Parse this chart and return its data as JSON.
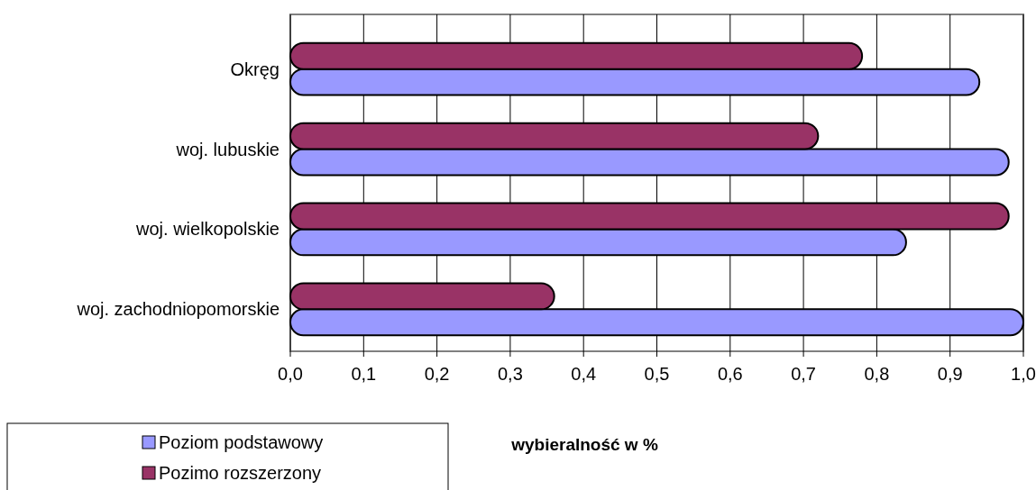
{
  "chart_data": {
    "type": "bar",
    "orientation": "horizontal",
    "xlabel": "wybieralność w %",
    "categories": [
      "Okręg",
      "woj. lubuskie",
      "woj. wielkopolskie",
      "woj. zachodniopomorskie"
    ],
    "series": [
      {
        "name": "Poziom podstawowy",
        "color": "#9999ff",
        "values": [
          0.94,
          0.98,
          0.84,
          1.0
        ]
      },
      {
        "name": "Pozimo rozszerzony",
        "color": "#993366",
        "values": [
          0.78,
          0.72,
          0.98,
          0.36
        ]
      }
    ],
    "xlim": [
      0,
      1
    ],
    "xticks": [
      {
        "value": 0,
        "label": "0,0"
      },
      {
        "value": 0.1,
        "label": "0,1"
      },
      {
        "value": 0.2,
        "label": "0,2"
      },
      {
        "value": 0.3,
        "label": "0,3"
      },
      {
        "value": 0.4,
        "label": "0,4"
      },
      {
        "value": 0.5,
        "label": "0,5"
      },
      {
        "value": 0.6,
        "label": "0,6"
      },
      {
        "value": 0.7,
        "label": "0,7"
      },
      {
        "value": 0.8,
        "label": "0,8"
      },
      {
        "value": 0.9,
        "label": "0,9"
      },
      {
        "value": 1,
        "label": "1,0"
      }
    ],
    "grid": "x",
    "legend": "bottom left"
  }
}
